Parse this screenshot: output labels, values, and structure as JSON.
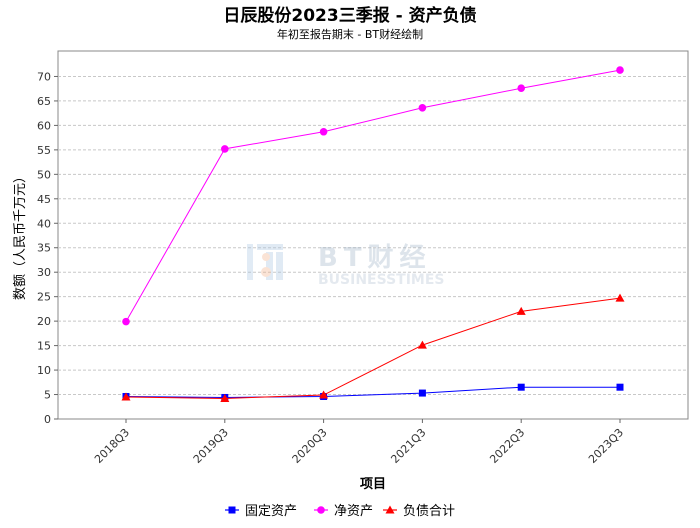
{
  "chart_data": {
    "type": "line",
    "title": "日辰股份2023三季报 - 资产负债",
    "subtitle": "年初至报告期末 - BT财经绘制",
    "xlabel": "项目",
    "ylabel": "数额（人民币千万元）",
    "categories": [
      "2018Q3",
      "2019Q3",
      "2020Q3",
      "2021Q3",
      "2022Q3",
      "2023Q3"
    ],
    "ylim": [
      0,
      75
    ],
    "yticks": [
      0,
      5,
      10,
      15,
      20,
      25,
      30,
      35,
      40,
      45,
      50,
      55,
      60,
      65,
      70
    ],
    "grid": true,
    "legend_position": "bottom",
    "series": [
      {
        "name": "固定资产",
        "color": "#0000ff",
        "marker": "square",
        "values": [
          4.6,
          4.4,
          4.6,
          5.3,
          6.5,
          6.5
        ]
      },
      {
        "name": "净资产",
        "color": "#ff00ff",
        "marker": "circle",
        "values": [
          19.9,
          55.2,
          58.7,
          63.6,
          67.6,
          71.3
        ]
      },
      {
        "name": "负债合计",
        "color": "#ff0000",
        "marker": "triangle",
        "values": [
          4.5,
          4.2,
          4.9,
          15.1,
          22.0,
          24.7
        ]
      }
    ],
    "watermark": {
      "brand": "BT财经",
      "tagline": "BUSINESSTIMES"
    }
  }
}
